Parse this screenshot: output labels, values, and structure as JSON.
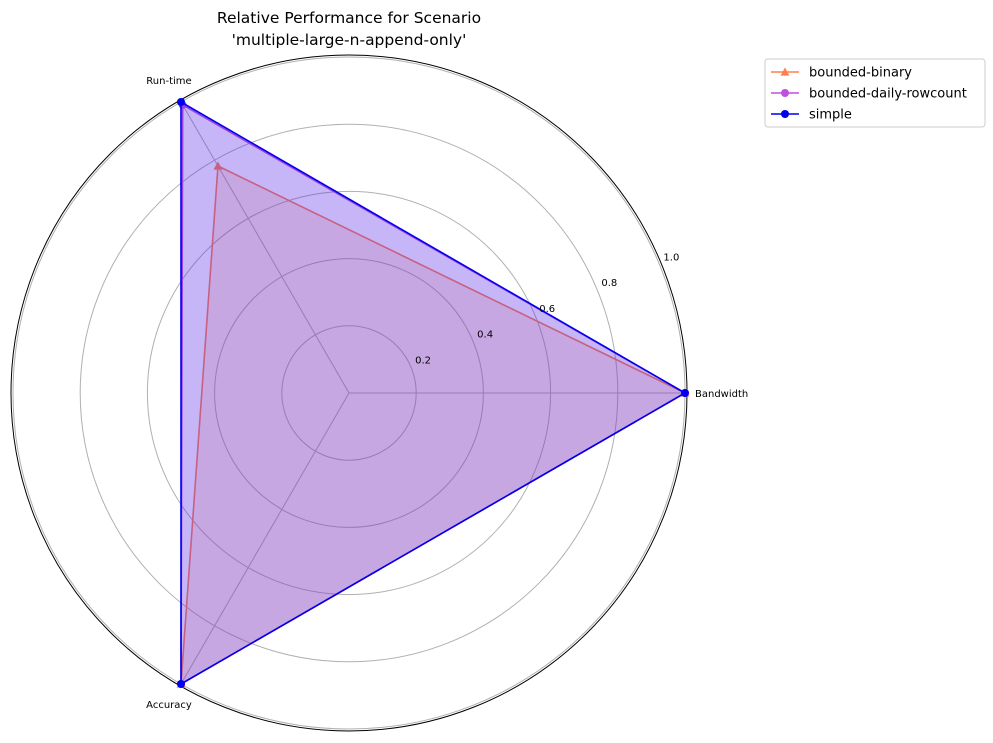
{
  "chart_data": {
    "type": "radar",
    "title_line1": "Relative Performance for Scenario",
    "title_line2": "'multiple-large-n-append-only'",
    "axes": [
      "Bandwidth",
      "Run-time",
      "Accuracy"
    ],
    "rlim": [
      0,
      1.0
    ],
    "rticks": [
      "0.2",
      "0.4",
      "0.6",
      "0.8",
      "1.0"
    ],
    "grid": true,
    "legend_placement": "upper-right-outside",
    "series": [
      {
        "name": "bounded-binary",
        "values": [
          1.0,
          0.78,
          1.0
        ],
        "color": "#ff7f50",
        "marker": "triangle"
      },
      {
        "name": "bounded-daily-rowcount",
        "values": [
          1.0,
          0.99,
          1.0
        ],
        "color": "#bf4fdf",
        "marker": "circle"
      },
      {
        "name": "simple",
        "values": [
          1.0,
          1.0,
          1.0
        ],
        "color": "#0000ee",
        "marker": "circle"
      }
    ]
  }
}
